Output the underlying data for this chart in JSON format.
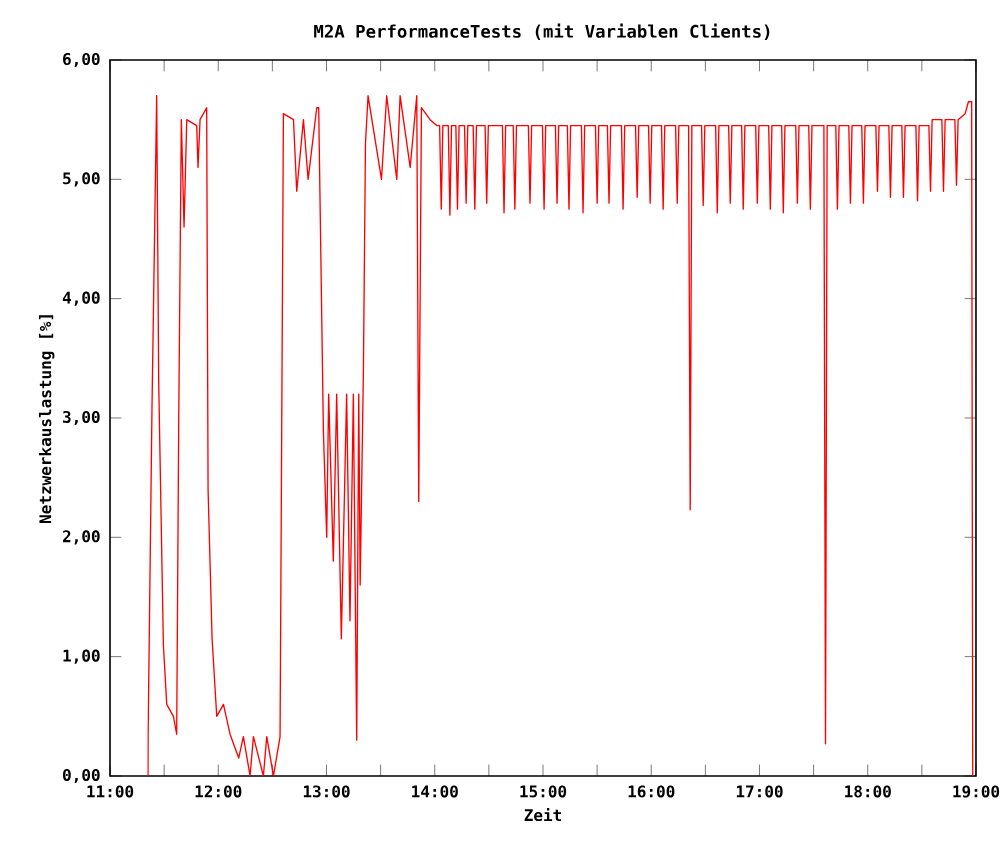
{
  "chart_data": {
    "type": "line",
    "title": "M2A PerformanceTests (mit Variablen Clients)",
    "xlabel": "Zeit",
    "ylabel": "Netzwerkauslastung [%]",
    "xlim": [
      11,
      19
    ],
    "ylim": [
      0,
      6
    ],
    "xticks": [
      {
        "value": 11,
        "label": "11:00"
      },
      {
        "value": 11.5,
        "label": null
      },
      {
        "value": 12,
        "label": "12:00"
      },
      {
        "value": 12.5,
        "label": null
      },
      {
        "value": 13,
        "label": "13:00"
      },
      {
        "value": 13.5,
        "label": null
      },
      {
        "value": 14,
        "label": "14:00"
      },
      {
        "value": 14.5,
        "label": null
      },
      {
        "value": 15,
        "label": "15:00"
      },
      {
        "value": 15.5,
        "label": null
      },
      {
        "value": 16,
        "label": "16:00"
      },
      {
        "value": 16.5,
        "label": null
      },
      {
        "value": 17,
        "label": "17:00"
      },
      {
        "value": 17.5,
        "label": null
      },
      {
        "value": 18,
        "label": "18:00"
      },
      {
        "value": 18.5,
        "label": null
      },
      {
        "value": 19,
        "label": "19:00"
      }
    ],
    "yticks": [
      {
        "value": 0,
        "label": "0,00"
      },
      {
        "value": 1,
        "label": "1,00"
      },
      {
        "value": 2,
        "label": "2,00"
      },
      {
        "value": 3,
        "label": "3,00"
      },
      {
        "value": 4,
        "label": "4,00"
      },
      {
        "value": 5,
        "label": "5,00"
      },
      {
        "value": 6,
        "label": "6,00"
      }
    ],
    "grid": false,
    "marker": "none",
    "line_style": "solid",
    "series": [
      {
        "color": "#ff0000",
        "x": [
          11.351,
          11.352,
          11.388,
          11.431,
          11.45,
          11.493,
          11.524,
          11.586,
          11.616,
          11.635,
          11.659,
          11.684,
          11.709,
          11.801,
          11.813,
          11.832,
          11.893,
          11.906,
          11.943,
          11.986,
          12.048,
          12.109,
          12.189,
          12.232,
          12.294,
          12.325,
          12.417,
          12.448,
          12.51,
          12.571,
          12.602,
          12.695,
          12.725,
          12.787,
          12.83,
          12.91,
          12.928,
          12.971,
          13.002,
          13.02,
          13.063,
          13.094,
          13.137,
          13.186,
          13.217,
          13.248,
          13.279,
          13.298,
          13.311,
          13.341,
          13.36,
          13.384,
          13.508,
          13.556,
          13.649,
          13.68,
          13.773,
          13.834,
          13.852,
          13.877,
          13.957,
          14.019,
          14.045,
          14.06,
          14.075,
          14.125,
          14.14,
          14.155,
          14.195,
          14.21,
          14.225,
          14.275,
          14.29,
          14.305,
          14.355,
          14.37,
          14.385,
          14.465,
          14.48,
          14.495,
          14.625,
          14.64,
          14.655,
          14.725,
          14.74,
          14.755,
          14.865,
          14.88,
          14.895,
          14.995,
          15.01,
          15.025,
          15.115,
          15.13,
          15.145,
          15.225,
          15.24,
          15.255,
          15.355,
          15.37,
          15.385,
          15.485,
          15.5,
          15.515,
          15.595,
          15.61,
          15.625,
          15.725,
          15.74,
          15.755,
          15.855,
          15.87,
          15.885,
          15.975,
          15.99,
          16.005,
          16.095,
          16.11,
          16.125,
          16.225,
          16.24,
          16.255,
          16.345,
          16.36,
          16.375,
          16.465,
          16.48,
          16.495,
          16.595,
          16.61,
          16.625,
          16.715,
          16.73,
          16.745,
          16.835,
          16.85,
          16.865,
          16.965,
          16.98,
          16.995,
          17.085,
          17.1,
          17.115,
          17.205,
          17.22,
          17.235,
          17.335,
          17.35,
          17.365,
          17.455,
          17.47,
          17.485,
          17.595,
          17.61,
          17.625,
          17.705,
          17.72,
          17.735,
          17.825,
          17.84,
          17.855,
          17.945,
          17.96,
          17.975,
          18.075,
          18.09,
          18.105,
          18.195,
          18.21,
          18.225,
          18.315,
          18.33,
          18.345,
          18.445,
          18.46,
          18.475,
          18.565,
          18.58,
          18.595,
          18.685,
          18.7,
          18.715,
          18.805,
          18.82,
          18.835,
          18.9,
          18.93,
          18.96,
          18.97
        ],
        "values": [
          0,
          0.35,
          3.1,
          5.7,
          3.3,
          1.1,
          0.6,
          0.5,
          0.35,
          3.0,
          5.5,
          4.6,
          5.5,
          5.45,
          5.1,
          5.5,
          5.6,
          2.4,
          1.15,
          0.5,
          0.6,
          0.35,
          0.15,
          0.33,
          0,
          0.33,
          0,
          0.33,
          0,
          0.33,
          5.55,
          5.5,
          4.9,
          5.5,
          5.0,
          5.6,
          5.6,
          2.9,
          2.0,
          3.2,
          1.8,
          3.2,
          1.15,
          3.2,
          1.3,
          3.2,
          0.3,
          3.2,
          1.6,
          3.4,
          5.3,
          5.7,
          5.0,
          5.7,
          5.0,
          5.7,
          5.1,
          5.7,
          2.3,
          5.6,
          5.5,
          5.45,
          5.45,
          4.75,
          5.45,
          5.45,
          4.7,
          5.45,
          5.45,
          4.75,
          5.45,
          5.45,
          4.8,
          5.45,
          5.45,
          4.75,
          5.45,
          5.45,
          4.8,
          5.45,
          5.45,
          4.72,
          5.45,
          5.45,
          4.75,
          5.45,
          5.45,
          4.8,
          5.45,
          5.45,
          4.75,
          5.45,
          5.45,
          4.8,
          5.45,
          5.45,
          4.75,
          5.45,
          5.45,
          4.72,
          5.45,
          5.45,
          4.8,
          5.45,
          5.45,
          4.8,
          5.45,
          5.45,
          4.75,
          5.45,
          5.45,
          4.85,
          5.45,
          5.45,
          4.8,
          5.45,
          5.45,
          4.75,
          5.45,
          5.45,
          4.8,
          5.45,
          5.45,
          2.23,
          5.45,
          5.45,
          4.78,
          5.45,
          5.45,
          4.72,
          5.45,
          5.45,
          4.8,
          5.45,
          5.45,
          4.75,
          5.45,
          5.45,
          4.8,
          5.45,
          5.45,
          4.75,
          5.45,
          5.45,
          4.72,
          5.45,
          5.45,
          4.8,
          5.45,
          5.45,
          4.75,
          5.45,
          5.45,
          0.27,
          5.45,
          5.45,
          4.75,
          5.45,
          5.45,
          4.8,
          5.45,
          5.45,
          4.8,
          5.45,
          5.45,
          4.9,
          5.45,
          5.45,
          4.85,
          5.45,
          5.45,
          4.85,
          5.45,
          5.45,
          4.82,
          5.45,
          5.45,
          4.9,
          5.5,
          5.5,
          4.9,
          5.5,
          5.5,
          4.95,
          5.5,
          5.55,
          5.65,
          5.65,
          0
        ]
      }
    ]
  }
}
